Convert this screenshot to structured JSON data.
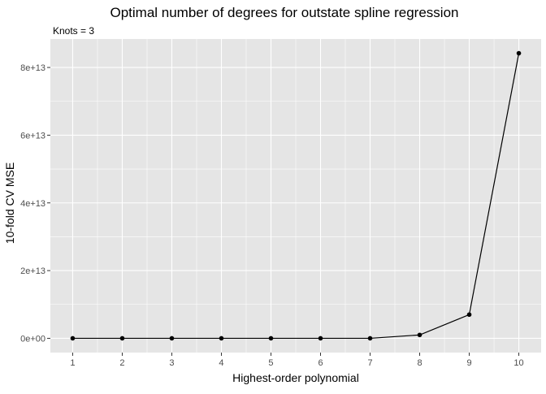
{
  "chart_data": {
    "type": "line",
    "title": "Optimal number of degrees for outstate spline regression",
    "subtitle": "Knots = 3",
    "xlabel": "Highest-order polynomial",
    "ylabel": "10-fold CV MSE",
    "x": [
      1,
      2,
      3,
      4,
      5,
      6,
      7,
      8,
      9,
      10
    ],
    "series": [
      {
        "values": [
          0,
          0,
          0,
          0,
          0,
          0,
          0,
          1000000000000,
          7000000000000,
          84200000000000
        ]
      }
    ],
    "x_ticks": [
      "1",
      "2",
      "3",
      "4",
      "5",
      "6",
      "7",
      "8",
      "9",
      "10"
    ],
    "y_ticks": [
      {
        "value": 0,
        "label": "0e+00"
      },
      {
        "value": 20000000000000,
        "label": "2e+13"
      },
      {
        "value": 40000000000000,
        "label": "4e+13"
      },
      {
        "value": 60000000000000,
        "label": "6e+13"
      },
      {
        "value": 80000000000000,
        "label": "8e+13"
      }
    ],
    "xlim": [
      0.55,
      10.45
    ],
    "ylim": [
      -4210000000000,
      88410000000000
    ],
    "grid": true,
    "legend": "none",
    "colors": {
      "panel_background": "#e5e5e5",
      "grid_major": "#ffffff",
      "line": "#000000",
      "point": "#000000",
      "tick_text": "#4d4d4d",
      "axis_title": "#000000"
    }
  }
}
